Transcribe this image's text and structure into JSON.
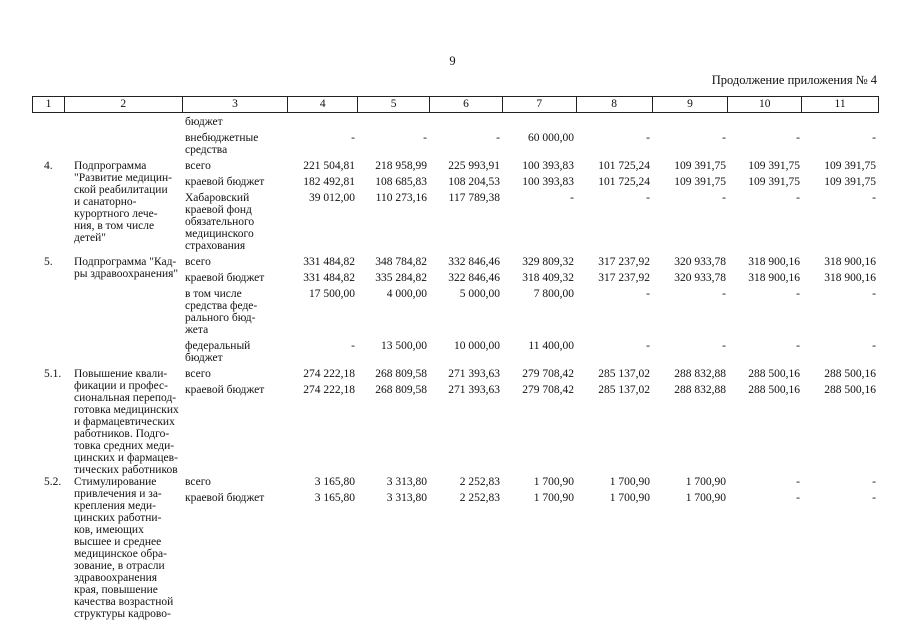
{
  "page": {
    "number": "9",
    "continuation": "Продолжение приложения № 4"
  },
  "table": {
    "column_numbers": [
      "1",
      "2",
      "3",
      "4",
      "5",
      "6",
      "7",
      "8",
      "9",
      "10",
      "11"
    ],
    "groups": [
      {
        "num": "",
        "name": "",
        "rows": [
          {
            "source": "бюджет",
            "values": [
              "",
              "",
              "",
              "",
              "",
              "",
              "",
              ""
            ]
          },
          {
            "source": "внебюджетные\nсредства",
            "values": [
              "-",
              "-",
              "-",
              "60 000,00",
              "-",
              "-",
              "-",
              "-"
            ]
          }
        ]
      },
      {
        "num": "4.",
        "name": "Подпрограмма\n\"Развитие медицин-\nской реабилитации\nи санаторно-\nкурортного лече-\nния, в том числе\nдетей\"",
        "rows": [
          {
            "source": "всего",
            "values": [
              "221 504,81",
              "218 958,99",
              "225 993,91",
              "100 393,83",
              "101 725,24",
              "109 391,75",
              "109 391,75",
              "109 391,75"
            ]
          },
          {
            "source": "краевой бюджет",
            "values": [
              "182 492,81",
              "108 685,83",
              "108 204,53",
              "100 393,83",
              "101 725,24",
              "109 391,75",
              "109 391,75",
              "109 391,75"
            ]
          },
          {
            "source": "Хабаровский\nкраевой фонд\nобязательного\nмедицинского\nстрахования",
            "values": [
              "39 012,00",
              "110 273,16",
              "117 789,38",
              "-",
              "-",
              "-",
              "-",
              "-"
            ]
          }
        ]
      },
      {
        "num": "5.",
        "name": "Подпрограмма \"Кад-\nры здравоохранения\"",
        "rows": [
          {
            "source": "всего",
            "values": [
              "331 484,82",
              "348 784,82",
              "332 846,46",
              "329 809,32",
              "317 237,92",
              "320 933,78",
              "318 900,16",
              "318 900,16"
            ]
          },
          {
            "source": "краевой бюджет",
            "values": [
              "331 484,82",
              "335 284,82",
              "322 846,46",
              "318 409,32",
              "317 237,92",
              "320 933,78",
              "318 900,16",
              "318 900,16"
            ]
          },
          {
            "source": "в том числе\nсредства феде-\nрального бюд-\nжета",
            "values": [
              "17 500,00",
              "4 000,00",
              "5 000,00",
              "7 800,00",
              "-",
              "-",
              "-",
              "-"
            ]
          },
          {
            "source": "федеральный\nбюджет",
            "values": [
              "-",
              "13 500,00",
              "10 000,00",
              "11 400,00",
              "-",
              "-",
              "-",
              "-"
            ]
          }
        ]
      },
      {
        "num": "5.1.",
        "name": "Повышение квали-\nфикации и профес-\nсиональная перепод-\nготовка медицинских\nи фармацевтических\nработников. Подго-\nтовка средних меди-\nцинских и фармацев-\nтических работников",
        "rows": [
          {
            "source": "всего",
            "values": [
              "274 222,18",
              "268 809,58",
              "271 393,63",
              "279 708,42",
              "285 137,02",
              "288 832,88",
              "288 500,16",
              "288 500,16"
            ]
          },
          {
            "source": "краевой бюджет",
            "values": [
              "274 222,18",
              "268 809,58",
              "271 393,63",
              "279 708,42",
              "285 137,02",
              "288 832,88",
              "288 500,16",
              "288 500,16"
            ]
          }
        ]
      },
      {
        "num": "5.2.",
        "name": "Стимулирование\nпривлечения и за-\nкрепления меди-\nцинских работни-\nков, имеющих\nвысшее и среднее\nмедицинское обра-\nзование, в отрасли\nздравоохранения\nкрая, повышение\nкачества возрастной\nструктуры кадрово-",
        "rows": [
          {
            "source": "всего",
            "values": [
              "3 165,80",
              "3 313,80",
              "2 252,83",
              "1 700,90",
              "1 700,90",
              "1 700,90",
              "-",
              "-"
            ]
          },
          {
            "source": "краевой бюджет",
            "values": [
              "3 165,80",
              "3 313,80",
              "2 252,83",
              "1 700,90",
              "1 700,90",
              "1 700,90",
              "-",
              "-"
            ]
          }
        ]
      }
    ]
  }
}
